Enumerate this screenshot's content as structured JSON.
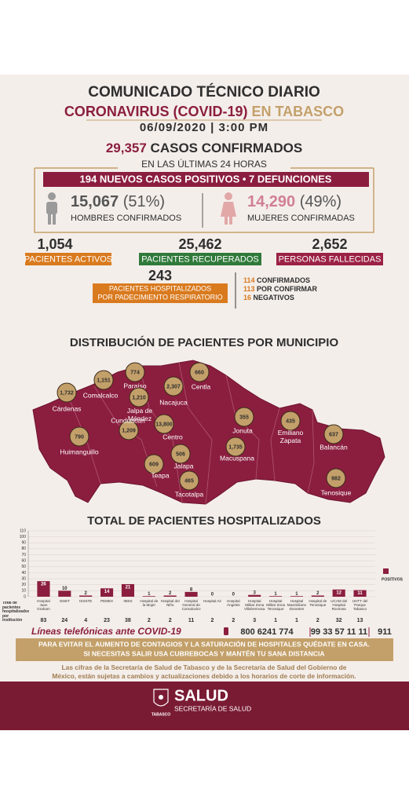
{
  "header": {
    "title": "COMUNICADO TÉCNICO DIARIO",
    "subtitle_main": "CORONAVIRUS (COVID-19)",
    "subtitle_place": "EN TABASCO",
    "date": "06/09/2020 | 3:00 PM"
  },
  "summary": {
    "confirmed": "29,357",
    "confirmed_label": "CASOS CONFIRMADOS",
    "period": "EN LAS ÚLTIMAS 24 HORAS",
    "daily": "194 NUEVOS CASOS POSITIVOS • 7 DEFUNCIONES"
  },
  "gender": {
    "men": {
      "value": "15,067",
      "percent": "(51%)",
      "label": "HOMBRES CONFIRMADOS"
    },
    "women": {
      "value": "14,290",
      "percent": "(49%)",
      "label": "MUJERES CONFIRMADAS"
    }
  },
  "status": [
    {
      "value": "1,054",
      "label": "PACIENTES ACTIVOS",
      "color": "#d97a1e"
    },
    {
      "value": "25,462",
      "label": "PACIENTES RECUPERADOS",
      "color": "#2f7a3a"
    },
    {
      "value": "2,652",
      "label": "PERSONAS FALLECIDAS",
      "color": "#9b2145"
    }
  ],
  "hospitalized": {
    "value": "243",
    "label": [
      "PACIENTES HOSPITALIZADOS",
      "POR PADECIMIENTO RESPIRATORIO"
    ],
    "breakdown": [
      {
        "value": "114",
        "label": "CONFIRMADOS"
      },
      {
        "value": "113",
        "label": "POR CONFIRMAR"
      },
      {
        "value": "16",
        "label": "NEGATIVOS"
      }
    ]
  },
  "map": {
    "title": "DISTRIBUCIÓN DE PACIENTES POR MUNICIPIO",
    "municipalities": [
      {
        "name": "Cárdenas",
        "value": "1,732"
      },
      {
        "name": "Comalcalco",
        "value": "1,151"
      },
      {
        "name": "Paraíso",
        "value": "774"
      },
      {
        "name": "Jalpa de Méndez",
        "value": "1,210"
      },
      {
        "name": "Nacajuca",
        "value": "2,307"
      },
      {
        "name": "Centla",
        "value": "660"
      },
      {
        "name": "Cunduacán",
        "value": "1,209"
      },
      {
        "name": "Huimanguillo",
        "value": "790"
      },
      {
        "name": "Centro",
        "value": "13,800"
      },
      {
        "name": "Jalapa",
        "value": "506"
      },
      {
        "name": "Teapa",
        "value": "609"
      },
      {
        "name": "Tacotalpa",
        "value": "465"
      },
      {
        "name": "Macuspana",
        "value": "1,735"
      },
      {
        "name": "Jonuta",
        "value": "355"
      },
      {
        "name": "Emiliano Zapata",
        "value": "435"
      },
      {
        "name": "Balancán",
        "value": "637"
      },
      {
        "name": "Tenosique",
        "value": "982"
      }
    ]
  },
  "chart_data": {
    "type": "bar",
    "title": "TOTAL DE PACIENTES HOSPITALIZADOS",
    "categories": [
      "Hospital Juan Graham",
      "ISSET",
      "ISSSTE",
      "PEMEX",
      "IMSS",
      "Hospital de la Mujer",
      "Hospital del Niño",
      "Hospital General de Comalcalco",
      "Hospital Air",
      "Hospital Ángeles",
      "Hospital Militar Zona Villahermosa",
      "Hospital Militar Zona Tenosique",
      "Hospital Maximiliano Dorantes",
      "Hospital de Tenosique",
      "UCAM del Hospital Rovirosa",
      "UHTT del Parque Tabasco"
    ],
    "series": [
      {
        "name": "POSITIVOS",
        "color": "#8b1e3f",
        "values": [
          26,
          10,
          2,
          14,
          21,
          1,
          2,
          8,
          0,
          0,
          3,
          1,
          1,
          2,
          12,
          11
        ]
      }
    ],
    "ylim": [
      0,
      110
    ],
    "yticks": [
      0,
      10,
      20,
      30,
      40,
      50,
      60,
      70,
      80,
      90,
      100,
      110
    ],
    "grid": true,
    "legend": "right",
    "totals": {
      "label": "Total de pacientes hospitalizados por institución",
      "values": [
        83,
        24,
        4,
        23,
        38,
        2,
        2,
        11,
        2,
        2,
        3,
        1,
        1,
        2,
        32,
        13
      ]
    }
  },
  "phones": {
    "label": "Líneas telefónicas ante COVID-19",
    "numbers": [
      "800 6241 774",
      "99 33 57 11 11",
      "911"
    ]
  },
  "notice": [
    "PARA EVITAR EL AUMENTO DE CONTAGIOS Y LA SATURACIÓN DE HOSPITALES QUÉDATE EN CASA.",
    "SI NECESITAS SALIR USA CUBREBOCAS Y MANTÉN TU SANA DISTANCIA"
  ],
  "disclaimer": [
    "Las cifras de la Secretaría de Salud de Tabasco y de la Secretaría de Salud del Gobierno de",
    "México, están sujetas a cambios y actualizaciones debido a los horarios de corte de información."
  ],
  "footer": {
    "brand": "SALUD",
    "subtitle": "SECRETARÍA DE SALUD",
    "state": "TABASCO"
  }
}
